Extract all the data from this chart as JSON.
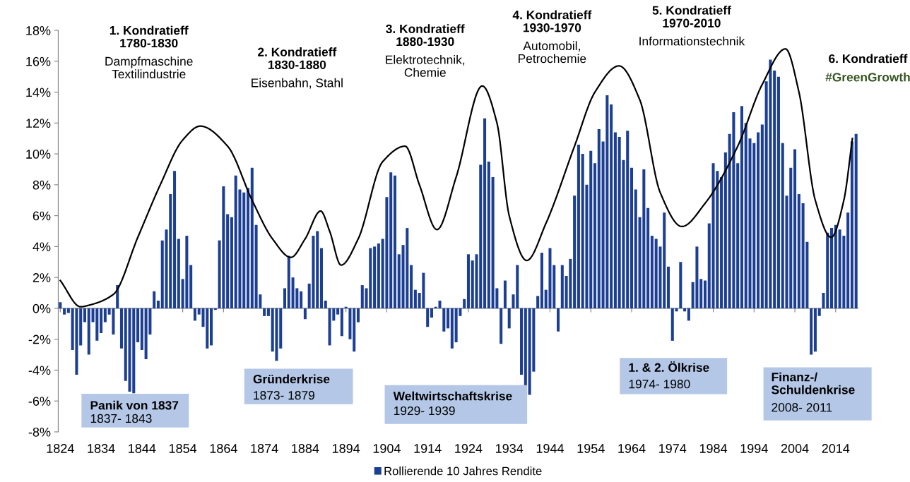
{
  "chart_data": {
    "type": "bar",
    "x": [
      1824,
      1825,
      1826,
      1827,
      1828,
      1829,
      1830,
      1831,
      1832,
      1833,
      1834,
      1835,
      1836,
      1837,
      1838,
      1839,
      1840,
      1841,
      1842,
      1843,
      1844,
      1845,
      1846,
      1847,
      1848,
      1849,
      1850,
      1851,
      1852,
      1853,
      1854,
      1855,
      1856,
      1857,
      1858,
      1859,
      1860,
      1861,
      1862,
      1863,
      1864,
      1865,
      1866,
      1867,
      1868,
      1869,
      1870,
      1871,
      1872,
      1873,
      1874,
      1875,
      1876,
      1877,
      1878,
      1879,
      1880,
      1881,
      1882,
      1883,
      1884,
      1885,
      1886,
      1887,
      1888,
      1889,
      1890,
      1891,
      1892,
      1893,
      1894,
      1895,
      1896,
      1897,
      1898,
      1899,
      1900,
      1901,
      1902,
      1903,
      1904,
      1905,
      1906,
      1907,
      1908,
      1909,
      1910,
      1911,
      1912,
      1913,
      1914,
      1915,
      1916,
      1917,
      1918,
      1919,
      1920,
      1921,
      1922,
      1923,
      1924,
      1925,
      1926,
      1927,
      1928,
      1929,
      1930,
      1931,
      1932,
      1933,
      1934,
      1935,
      1936,
      1937,
      1938,
      1939,
      1940,
      1941,
      1942,
      1943,
      1944,
      1945,
      1946,
      1947,
      1948,
      1949,
      1950,
      1951,
      1952,
      1953,
      1954,
      1955,
      1956,
      1957,
      1958,
      1959,
      1960,
      1961,
      1962,
      1963,
      1964,
      1965,
      1966,
      1967,
      1968,
      1969,
      1970,
      1971,
      1972,
      1973,
      1974,
      1975,
      1976,
      1977,
      1978,
      1979,
      1980,
      1981,
      1982,
      1983,
      1984,
      1985,
      1986,
      1987,
      1988,
      1989,
      1990,
      1991,
      1992,
      1993,
      1994,
      1995,
      1996,
      1997,
      1998,
      1999,
      2000,
      2001,
      2002,
      2003,
      2004,
      2005,
      2006,
      2007,
      2008,
      2009,
      2010,
      2011,
      2012,
      2013,
      2014,
      2015,
      2016,
      2017,
      2018,
      2019
    ],
    "series": [
      {
        "name": "Rollierende 10 Jahres Rendite",
        "color": "#1c3f94",
        "values": [
          0.4,
          -0.4,
          -0.3,
          -2.7,
          -4.3,
          -2.4,
          -0.9,
          -3.0,
          -0.9,
          -2.1,
          -1.6,
          -0.9,
          -0.4,
          -1.7,
          1.5,
          -2.6,
          -4.7,
          -5.4,
          -5.5,
          -2.2,
          -2.7,
          -3.3,
          -1.7,
          1.1,
          0.5,
          4.4,
          5.1,
          7.4,
          8.9,
          4.5,
          1.9,
          4.7,
          2.8,
          -0.8,
          -0.4,
          -1.2,
          -2.6,
          -2.4,
          -0.1,
          4.4,
          7.9,
          6.1,
          5.9,
          8.6,
          7.7,
          7.5,
          7.8,
          9.1,
          5.4,
          0.9,
          -0.5,
          -0.5,
          -2.8,
          -3.4,
          -2.6,
          1.3,
          3.4,
          2.0,
          1.3,
          1.1,
          -0.7,
          1.6,
          4.7,
          5.0,
          3.9,
          0.5,
          -2.4,
          -0.8,
          -0.4,
          -1.8,
          0.1,
          -2.0,
          -2.8,
          -0.9,
          1.5,
          1.3,
          3.9,
          4.0,
          4.2,
          4.5,
          7.2,
          8.8,
          8.6,
          3.5,
          4.1,
          5.2,
          2.8,
          1.2,
          1.0,
          2.3,
          -1.2,
          -0.6,
          0.1,
          0.5,
          -1.5,
          -1.3,
          -2.6,
          -2.2,
          -0.5,
          0.6,
          3.5,
          3.1,
          3.5,
          9.3,
          12.3,
          9.5,
          8.5,
          1.3,
          -2.3,
          1.8,
          -1.3,
          0.9,
          2.8,
          -4.3,
          -5.0,
          -5.6,
          -4.1,
          0.8,
          3.6,
          1.2,
          3.9,
          2.8,
          -1.5,
          2.8,
          2.1,
          3.2,
          7.3,
          10.6,
          10.0,
          8.0,
          10.2,
          9.4,
          11.6,
          10.8,
          13.8,
          13.2,
          11.4,
          11.1,
          9.6,
          11.5,
          9.1,
          7.7,
          5.9,
          9.0,
          6.5,
          4.7,
          4.5,
          4.0,
          6.2,
          2.7,
          -2.1,
          -0.2,
          3.0,
          -0.2,
          -0.8,
          1.7,
          4.0,
          1.9,
          1.8,
          5.5,
          9.4,
          8.9,
          8.5,
          10.1,
          11.3,
          12.7,
          9.4,
          13.1,
          12.0,
          11.0,
          10.7,
          11.4,
          11.9,
          14.7,
          16.1,
          15.4,
          15.0,
          10.7,
          7.3,
          9.1,
          10.3,
          7.4,
          6.8,
          4.3,
          -3.0,
          -2.8,
          -0.5,
          1.0,
          4.9,
          5.2,
          5.4,
          5.1,
          4.7,
          6.2,
          10.8,
          11.3
        ]
      },
      {
        "type": "line",
        "color": "#000000",
        "x": [
          1824,
          1829,
          1831,
          1837,
          1843,
          1848.5,
          1854,
          1858.3,
          1865,
          1871,
          1876,
          1880.5,
          1884,
          1887.8,
          1890,
          1892.8,
          1897,
          1903,
          1908.5,
          1912,
          1916.3,
          1921,
          1927.4,
          1931,
          1934,
          1938.3,
          1943,
          1950,
          1955,
          1960.9,
          1966,
          1971,
          1976.3,
          1982,
          1990,
          1996,
          2001.7,
          2005,
          2009,
          2012.9,
          2016,
          2018.1
        ],
        "values": [
          1.8,
          0.1,
          0.2,
          0.9,
          4.6,
          8.0,
          10.9,
          11.8,
          10.5,
          7.0,
          4.5,
          3.3,
          4.5,
          6.3,
          5.0,
          2.8,
          4.5,
          9.5,
          10.5,
          8.0,
          5.1,
          8.5,
          14.4,
          12.0,
          6.0,
          3.1,
          5.5,
          10.5,
          14.0,
          15.7,
          13.5,
          7.5,
          5.3,
          6.8,
          10.5,
          14.5,
          16.8,
          14.0,
          7.0,
          4.6,
          7.0,
          11.0
        ]
      }
    ],
    "xlim": [
      1823.5,
      2019.5
    ],
    "xticks": [
      1824,
      1834,
      1844,
      1854,
      1864,
      1874,
      1884,
      1894,
      1904,
      1914,
      1924,
      1934,
      1944,
      1954,
      1964,
      1974,
      1984,
      1994,
      2004,
      2014
    ],
    "ylim": [
      -8,
      18
    ],
    "yticks": [
      {
        "value": -8,
        "label": "-8%"
      },
      {
        "value": -6,
        "label": "-6%"
      },
      {
        "value": -4,
        "label": "-4%"
      },
      {
        "value": -2,
        "label": "-2%"
      },
      {
        "value": 0,
        "label": "0%"
      },
      {
        "value": 2,
        "label": "2%"
      },
      {
        "value": 4,
        "label": "4%"
      },
      {
        "value": 6,
        "label": "6%"
      },
      {
        "value": 8,
        "label": "8%"
      },
      {
        "value": 10,
        "label": "10%"
      },
      {
        "value": 12,
        "label": "12%"
      },
      {
        "value": 14,
        "label": "14%"
      },
      {
        "value": 16,
        "label": "16%"
      },
      {
        "value": 18,
        "label": "18%"
      }
    ],
    "legend": "bottom",
    "annotations": [
      "1. Kondratieff\n1780-1830",
      "Dampfmaschine\nTextilindustrie",
      "2. Kondratieff\n1830-1880",
      "Eisenbahn, Stahl",
      "3. Kondratieff\n1880-1930",
      "Elektrotechnik,\nChemie",
      "4. Kondratieff\n1930-1970",
      "Automobil,\nPetrochemie",
      "5. Kondratieff\n1970-2010",
      "Informationstechnik",
      "6. Kondratieff",
      "#GreenGrowth",
      "Panik von 1837",
      "1837- 1843",
      "Gründerkrise",
      "1873- 1879",
      "Weltwirtschaftskrise",
      "1929- 1939",
      "1. & 2. Ölkrise",
      "1974- 1980",
      "Finanz-/\nSchuldenkrise",
      "2008- 2011"
    ]
  }
}
